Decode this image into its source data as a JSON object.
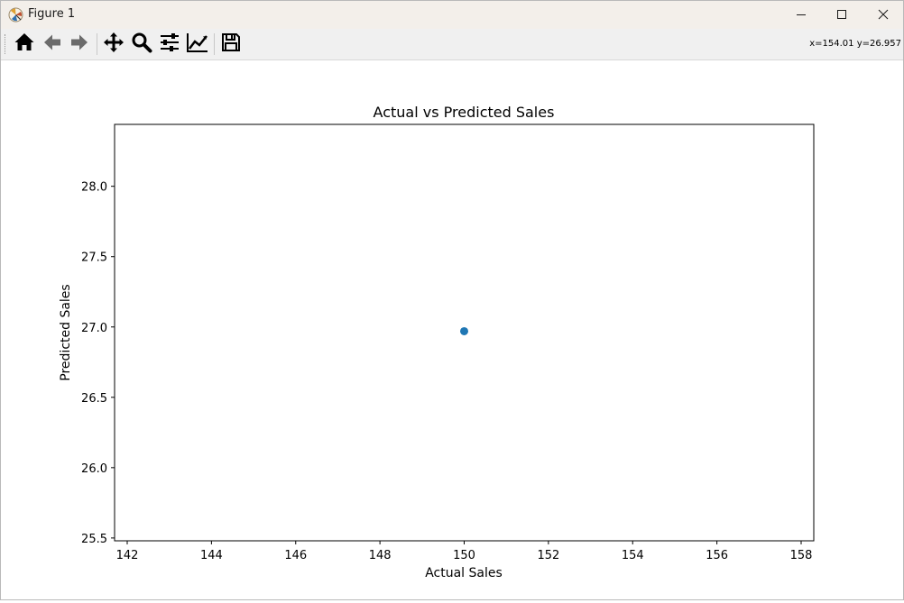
{
  "window": {
    "title": "Figure 1",
    "app_icon": "matplotlib-icon",
    "controls": {
      "minimize": "minimize-icon",
      "maximize": "maximize-icon",
      "close": "close-icon"
    }
  },
  "toolbar": {
    "items": [
      {
        "name": "home-button",
        "icon": "home-icon"
      },
      {
        "name": "back-button",
        "icon": "arrow-left-icon"
      },
      {
        "name": "forward-button",
        "icon": "arrow-right-icon"
      },
      {
        "name": "pan-button",
        "icon": "move-icon"
      },
      {
        "name": "zoom-button",
        "icon": "magnifier-icon"
      },
      {
        "name": "subplots-button",
        "icon": "sliders-icon"
      },
      {
        "name": "customize-button",
        "icon": "line-chart-icon"
      },
      {
        "name": "save-button",
        "icon": "floppy-disk-icon"
      }
    ],
    "coordinates": "x=154.01 y=26.957"
  },
  "chart_data": {
    "type": "scatter",
    "title": "Actual vs Predicted Sales",
    "xlabel": "Actual Sales",
    "ylabel": "Predicted Sales",
    "x": [
      150
    ],
    "y": [
      26.97
    ],
    "xlim": [
      141.7,
      158.3
    ],
    "ylim": [
      25.48,
      28.44
    ],
    "xticks": [
      142,
      144,
      146,
      148,
      150,
      152,
      154,
      156,
      158
    ],
    "xtick_labels": [
      "142",
      "144",
      "146",
      "148",
      "150",
      "152",
      "154",
      "156",
      "158"
    ],
    "yticks": [
      25.5,
      26.0,
      26.5,
      27.0,
      27.5,
      28.0
    ],
    "ytick_labels": [
      "25.5",
      "26.0",
      "26.5",
      "27.0",
      "27.5",
      "28.0"
    ],
    "grid": false,
    "marker_color": "#1f77b4"
  }
}
